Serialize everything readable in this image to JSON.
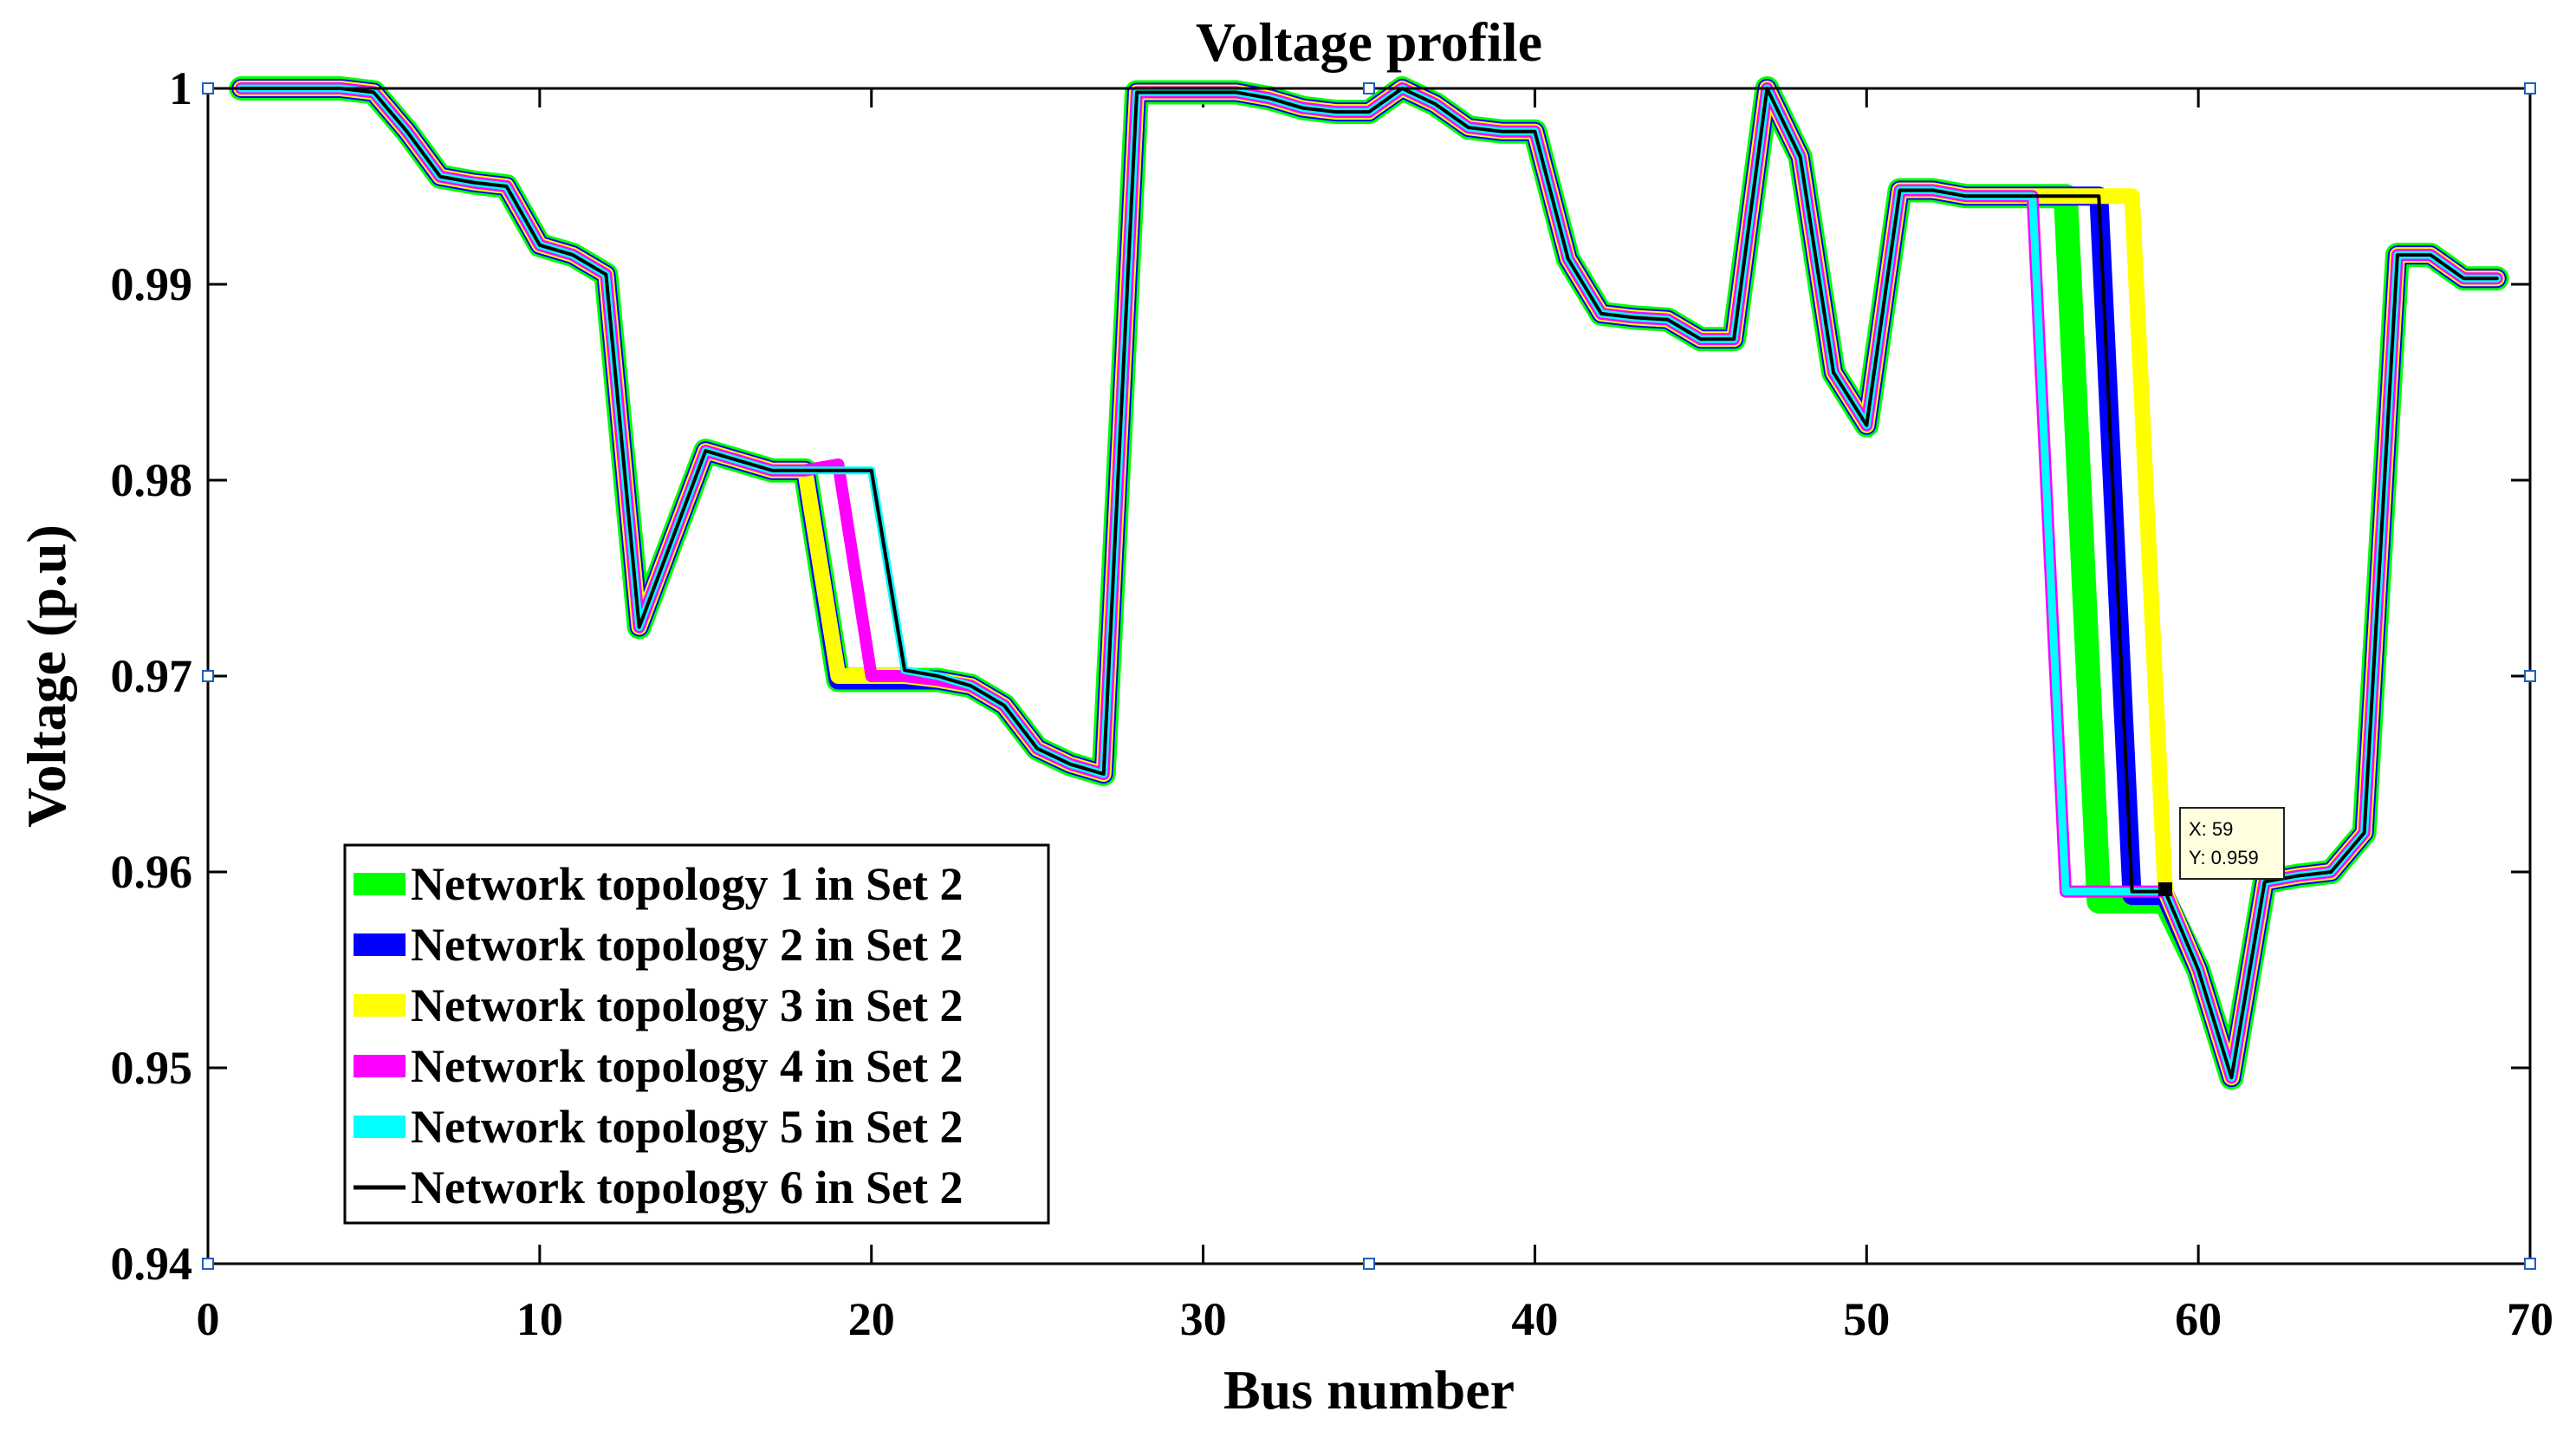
{
  "chart_data": {
    "type": "line",
    "title": "Voltage profile",
    "xlabel": "Bus number",
    "ylabel": "Voltage (p.u)",
    "xlim": [
      0,
      70
    ],
    "ylim": [
      0.94,
      1.0
    ],
    "xticks": [
      0,
      10,
      20,
      30,
      40,
      50,
      60,
      70
    ],
    "yticks": [
      0.94,
      0.95,
      0.96,
      0.97,
      0.98,
      0.99,
      1.0
    ],
    "xtick_labels": [
      "0",
      "10",
      "20",
      "30",
      "40",
      "50",
      "60",
      "70"
    ],
    "ytick_labels": [
      "0.94",
      "0.95",
      "0.96",
      "0.97",
      "0.98",
      "0.99",
      "1"
    ],
    "legend_position": "bottom-left",
    "x": [
      1,
      2,
      3,
      4,
      5,
      6,
      7,
      8,
      9,
      10,
      11,
      12,
      13,
      14,
      15,
      16,
      17,
      18,
      19,
      20,
      21,
      22,
      23,
      24,
      25,
      26,
      27,
      28,
      29,
      30,
      31,
      32,
      33,
      34,
      35,
      36,
      37,
      38,
      39,
      40,
      41,
      42,
      43,
      44,
      45,
      46,
      47,
      48,
      49,
      50,
      51,
      52,
      53,
      54,
      55,
      56,
      57,
      58,
      59,
      60,
      61,
      62,
      63,
      64,
      65,
      66,
      67,
      68,
      69
    ],
    "series": [
      {
        "name": "Network topology 1 in Set 2",
        "color": "#00ff00",
        "values": [
          1.0,
          1.0,
          1.0,
          1.0,
          0.9998,
          0.9978,
          0.9955,
          0.9952,
          0.995,
          0.992,
          0.9915,
          0.9905,
          0.9725,
          0.977,
          0.9815,
          0.981,
          0.9805,
          0.9805,
          0.9698,
          0.9698,
          0.9698,
          0.9698,
          0.9695,
          0.9685,
          0.9663,
          0.9655,
          0.965,
          0.9998,
          0.9998,
          0.9998,
          0.9998,
          0.9995,
          0.999,
          0.9988,
          0.9988,
          1.0,
          0.9992,
          0.998,
          0.9978,
          0.9978,
          0.9913,
          0.9885,
          0.9883,
          0.9882,
          0.9872,
          0.9872,
          1.0,
          0.9965,
          0.9855,
          0.9828,
          0.9948,
          0.9948,
          0.9945,
          0.9945,
          0.9945,
          0.9945,
          0.9585,
          0.9585,
          0.9585,
          0.955,
          0.9495,
          0.9595,
          0.9598,
          0.96,
          0.962,
          0.9915,
          0.9915,
          0.9903,
          0.9903
        ]
      },
      {
        "name": "Network topology 2 in Set 2",
        "color": "#0000ff",
        "values": [
          1.0,
          1.0,
          1.0,
          1.0,
          0.9998,
          0.9978,
          0.9955,
          0.9952,
          0.995,
          0.992,
          0.9915,
          0.9905,
          0.9725,
          0.977,
          0.9815,
          0.981,
          0.9805,
          0.9805,
          0.9698,
          0.9698,
          0.9698,
          0.9698,
          0.9695,
          0.9685,
          0.9663,
          0.9655,
          0.965,
          0.9998,
          0.9998,
          0.9998,
          0.9998,
          0.9995,
          0.999,
          0.9988,
          0.9988,
          1.0,
          0.9992,
          0.998,
          0.9978,
          0.9978,
          0.9913,
          0.9885,
          0.9883,
          0.9882,
          0.9872,
          0.9872,
          1.0,
          0.9965,
          0.9855,
          0.9828,
          0.9948,
          0.9948,
          0.9945,
          0.9945,
          0.9945,
          0.9945,
          0.9945,
          0.9588,
          0.9588,
          0.955,
          0.9495,
          0.9595,
          0.9598,
          0.96,
          0.962,
          0.9915,
          0.9915,
          0.9903,
          0.9903
        ]
      },
      {
        "name": "Network topology 3 in Set 2",
        "color": "#ffff00",
        "values": [
          1.0,
          1.0,
          1.0,
          1.0,
          0.9998,
          0.9978,
          0.9955,
          0.9952,
          0.995,
          0.992,
          0.9915,
          0.9905,
          0.9725,
          0.977,
          0.9815,
          0.981,
          0.9805,
          0.9805,
          0.97,
          0.97,
          0.97,
          0.9698,
          0.9695,
          0.9685,
          0.9663,
          0.9655,
          0.965,
          0.9998,
          0.9998,
          0.9998,
          0.9998,
          0.9995,
          0.999,
          0.9988,
          0.9988,
          1.0,
          0.9992,
          0.998,
          0.9978,
          0.9978,
          0.9913,
          0.9885,
          0.9883,
          0.9882,
          0.9872,
          0.9872,
          1.0,
          0.9965,
          0.9855,
          0.9828,
          0.9948,
          0.9948,
          0.9945,
          0.9945,
          0.9945,
          0.9945,
          0.9945,
          0.9945,
          0.959,
          0.955,
          0.9495,
          0.9595,
          0.9598,
          0.96,
          0.962,
          0.9915,
          0.9915,
          0.9903,
          0.9903
        ]
      },
      {
        "name": "Network topology 4 in Set 2",
        "color": "#ff00ff",
        "values": [
          1.0,
          1.0,
          1.0,
          1.0,
          0.9998,
          0.9978,
          0.9955,
          0.9952,
          0.995,
          0.992,
          0.9915,
          0.9905,
          0.9725,
          0.977,
          0.9815,
          0.981,
          0.9805,
          0.9805,
          0.9808,
          0.97,
          0.97,
          0.9698,
          0.9695,
          0.9685,
          0.9663,
          0.9655,
          0.965,
          0.9998,
          0.9998,
          0.9998,
          0.9998,
          0.9995,
          0.999,
          0.9988,
          0.9988,
          1.0,
          0.9992,
          0.998,
          0.9978,
          0.9978,
          0.9913,
          0.9885,
          0.9883,
          0.9882,
          0.9872,
          0.9872,
          1.0,
          0.9965,
          0.9855,
          0.9828,
          0.9948,
          0.9948,
          0.9945,
          0.9945,
          0.9945,
          0.959,
          0.959,
          0.959,
          0.959,
          0.955,
          0.9495,
          0.9595,
          0.9598,
          0.96,
          0.962,
          0.9915,
          0.9915,
          0.9903,
          0.9903
        ]
      },
      {
        "name": "Network topology 5 in Set 2",
        "color": "#00ffff",
        "values": [
          1.0,
          1.0,
          1.0,
          1.0,
          0.9998,
          0.9978,
          0.9955,
          0.9952,
          0.995,
          0.992,
          0.9915,
          0.9905,
          0.9725,
          0.977,
          0.9815,
          0.981,
          0.9805,
          0.9805,
          0.9805,
          0.9805,
          0.9703,
          0.97,
          0.9695,
          0.9685,
          0.9663,
          0.9655,
          0.965,
          0.9998,
          0.9998,
          0.9998,
          0.9998,
          0.9995,
          0.999,
          0.9988,
          0.9988,
          1.0,
          0.9992,
          0.998,
          0.9978,
          0.9978,
          0.9913,
          0.9885,
          0.9883,
          0.9882,
          0.9872,
          0.9872,
          1.0,
          0.9965,
          0.9855,
          0.9828,
          0.9948,
          0.9948,
          0.9945,
          0.9945,
          0.9945,
          0.959,
          0.959,
          0.959,
          0.959,
          0.955,
          0.9495,
          0.9595,
          0.9598,
          0.96,
          0.962,
          0.9915,
          0.9915,
          0.9903,
          0.9903
        ]
      },
      {
        "name": "Network topology 6 in Set 2",
        "color": "#000000",
        "values": [
          1.0,
          1.0,
          1.0,
          1.0,
          0.9998,
          0.9978,
          0.9955,
          0.9952,
          0.995,
          0.992,
          0.9915,
          0.9905,
          0.9725,
          0.977,
          0.9815,
          0.981,
          0.9805,
          0.9805,
          0.9805,
          0.9805,
          0.9703,
          0.97,
          0.9695,
          0.9685,
          0.9663,
          0.9655,
          0.965,
          0.9998,
          0.9998,
          0.9998,
          0.9998,
          0.9995,
          0.999,
          0.9988,
          0.9988,
          1.0,
          0.9992,
          0.998,
          0.9978,
          0.9978,
          0.9913,
          0.9885,
          0.9883,
          0.9882,
          0.9872,
          0.9872,
          1.0,
          0.9965,
          0.9855,
          0.9828,
          0.9948,
          0.9948,
          0.9945,
          0.9945,
          0.9945,
          0.9945,
          0.9945,
          0.959,
          0.959,
          0.955,
          0.9495,
          0.9595,
          0.9598,
          0.96,
          0.962,
          0.9915,
          0.9915,
          0.9903,
          0.9903
        ]
      }
    ],
    "datatip": {
      "x": 59,
      "y": 0.959,
      "label_x": "X: 59",
      "label_y": "Y: 0.959"
    }
  }
}
